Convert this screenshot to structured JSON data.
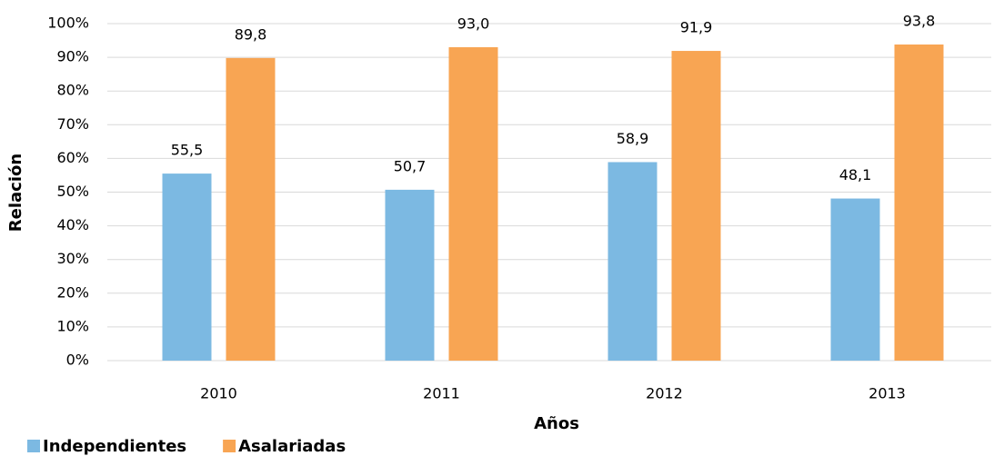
{
  "chart_data": {
    "type": "bar",
    "x_label": "Años",
    "y_label": "Relación",
    "categories": [
      "2010",
      "2011",
      "2012",
      "2013"
    ],
    "series": [
      {
        "name": "Independientes",
        "color": "#7cb9e2",
        "values": [
          55.5,
          50.7,
          58.9,
          48.1
        ],
        "value_labels": [
          "55,5",
          "50,7",
          "58,9",
          "48,1"
        ]
      },
      {
        "name": "Asalariadas",
        "color": "#f8a553",
        "values": [
          89.8,
          93.0,
          91.9,
          93.8
        ],
        "value_labels": [
          "89,8",
          "93,0",
          "91,9",
          "93,8"
        ]
      }
    ],
    "ylim": [
      0,
      100
    ],
    "yticks": [
      {
        "value": 0,
        "label": "0%"
      },
      {
        "value": 10,
        "label": "10%"
      },
      {
        "value": 20,
        "label": "20%"
      },
      {
        "value": 30,
        "label": "30%"
      },
      {
        "value": 40,
        "label": "40%"
      },
      {
        "value": 50,
        "label": "50%"
      },
      {
        "value": 60,
        "label": "60%"
      },
      {
        "value": 70,
        "label": "70%"
      },
      {
        "value": 80,
        "label": "80%"
      },
      {
        "value": 90,
        "label": "90%"
      },
      {
        "value": 100,
        "label": "100%"
      }
    ],
    "grid": true,
    "legend": "bottom-left"
  }
}
